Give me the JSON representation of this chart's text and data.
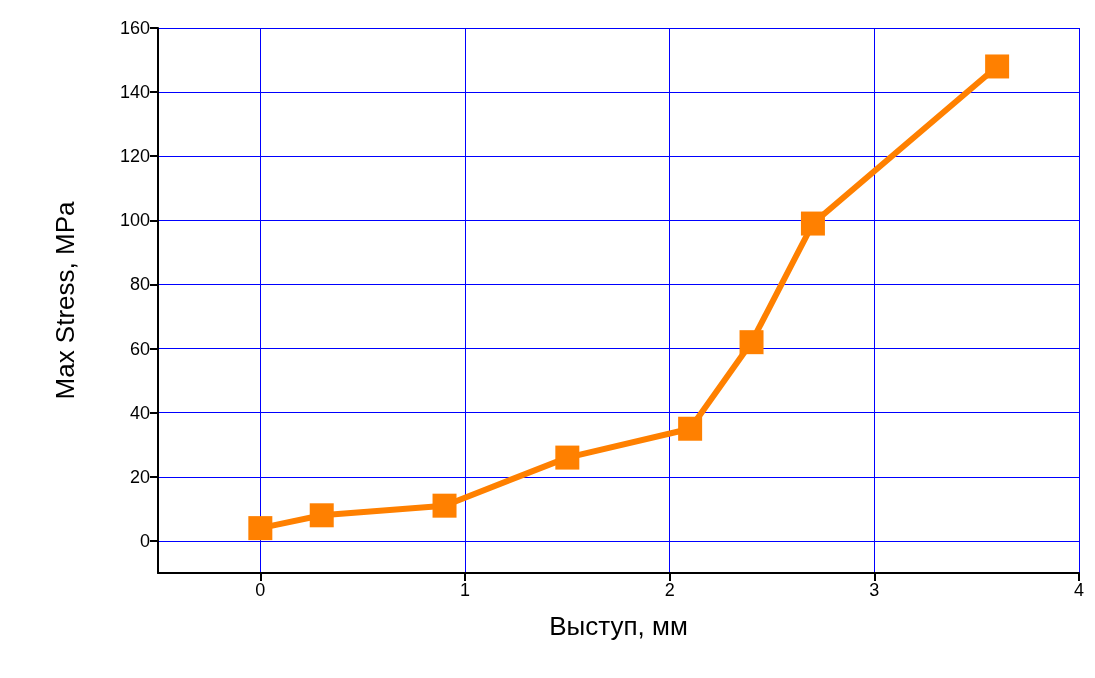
{
  "chart_data": {
    "type": "line",
    "xlabel": "Выступ, мм",
    "ylabel": "Max Stress, MPa",
    "x": [
      0,
      0.3,
      0.9,
      1.5,
      2.1,
      2.4,
      2.7,
      3.6
    ],
    "series": [
      {
        "color": "#ff8000",
        "values": [
          4,
          8,
          11,
          26,
          35,
          62,
          99,
          148
        ]
      }
    ],
    "xlim": [
      -0.5,
      4
    ],
    "xticks": [
      0,
      1,
      2,
      3,
      4
    ],
    "ylim": [
      -10,
      160
    ],
    "yticks": [
      0,
      20,
      40,
      60,
      80,
      100,
      120,
      140,
      160
    ],
    "grid": true,
    "marker": "square",
    "line_style": "solid"
  }
}
